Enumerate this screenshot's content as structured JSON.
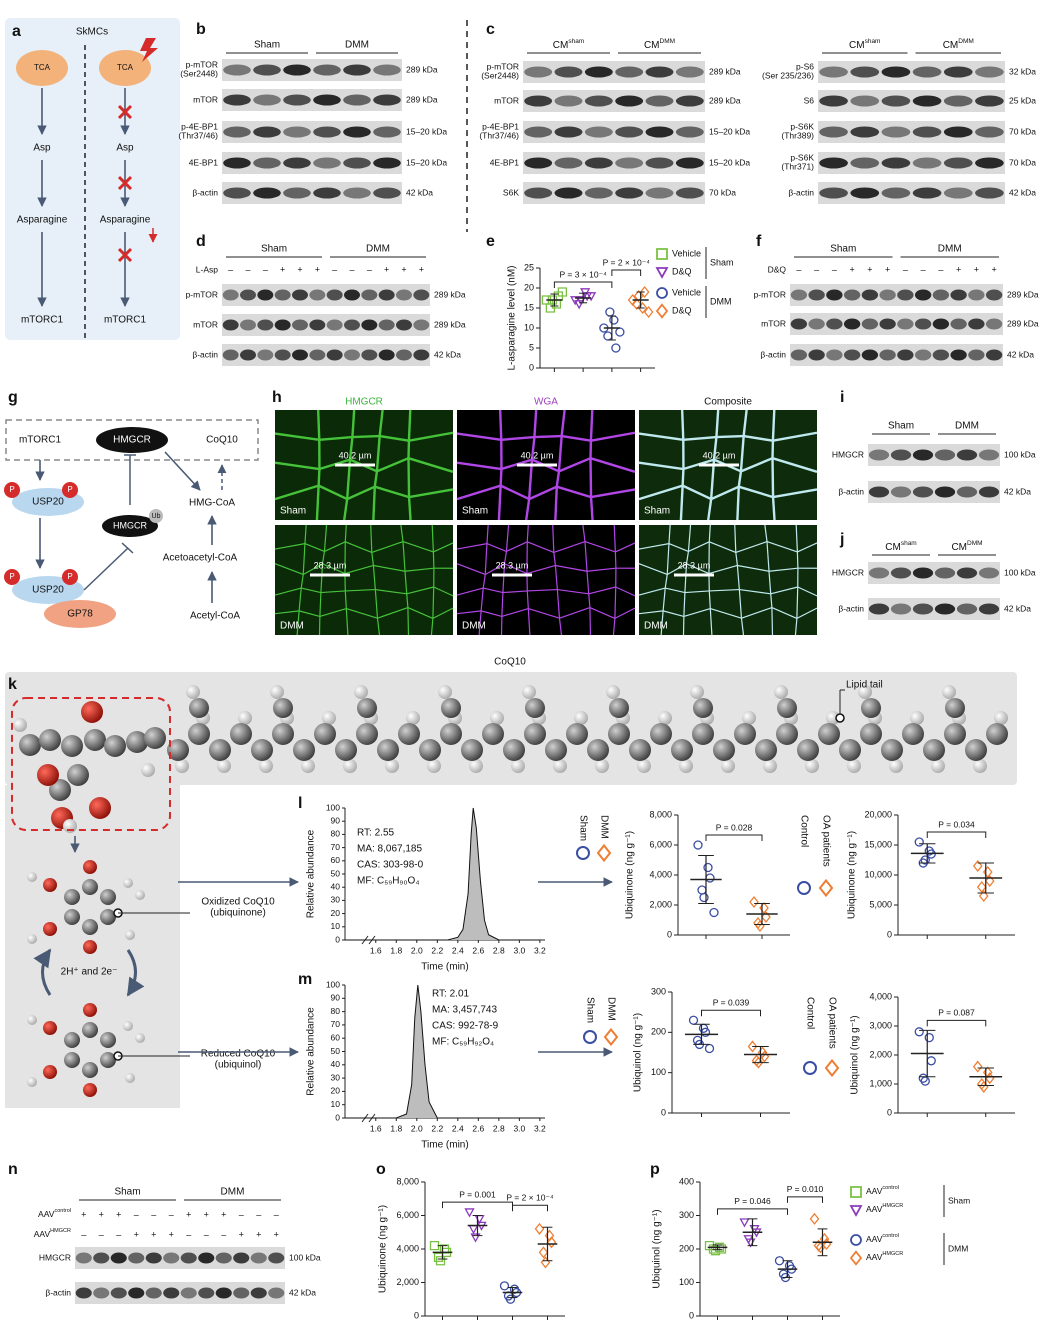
{
  "a": {
    "letter": "a",
    "title": "SkMCs",
    "left": [
      "TCA",
      "Asp",
      "Asparagine",
      "mTORC1"
    ],
    "right": [
      "TCA",
      "Asp",
      "Asparagine",
      "mTORC1"
    ]
  },
  "b": {
    "letter": "b",
    "groups": [
      "Sham",
      "DMM"
    ],
    "rows": [
      {
        "label": [
          "p-mTOR",
          "(Ser2448)"
        ],
        "kda": "289 kDa"
      },
      {
        "label": "mTOR",
        "kda": "289 kDa"
      },
      {
        "label": [
          "p-4E-BP1",
          "(Thr37/46)"
        ],
        "kda": "15–20 kDa"
      },
      {
        "label": "4E-BP1",
        "kda": "15–20 kDa"
      },
      {
        "label": "β-actin",
        "kda": "42 kDa"
      }
    ]
  },
  "c": {
    "letter": "c",
    "left": {
      "groups": [
        {
          "base": "CM",
          "sup": "sham"
        },
        {
          "base": "CM",
          "sup": "DMM"
        }
      ],
      "rows": [
        {
          "label": [
            "p-mTOR",
            "(Ser2448)"
          ],
          "kda": "289 kDa"
        },
        {
          "label": "mTOR",
          "kda": "289 kDa"
        },
        {
          "label": [
            "p-4E-BP1",
            "(Thr37/46)"
          ],
          "kda": "15–20 kDa"
        },
        {
          "label": "4E-BP1",
          "kda": "15–20 kDa"
        },
        {
          "label": "S6K",
          "kda": "70 kDa"
        }
      ]
    },
    "right": {
      "groups": [
        {
          "base": "CM",
          "sup": "sham"
        },
        {
          "base": "CM",
          "sup": "DMM"
        }
      ],
      "rows": [
        {
          "label": [
            "p-S6",
            "(Ser 235/236)"
          ],
          "kda": "32 kDa"
        },
        {
          "label": "S6",
          "kda": "25 kDa"
        },
        {
          "label": [
            "p-S6K",
            "(Thr389)"
          ],
          "kda": "70 kDa"
        },
        {
          "label": [
            "p-S6K",
            "(Thr371)"
          ],
          "kda": "70 kDa"
        },
        {
          "label": "β-actin",
          "kda": "42 kDa"
        }
      ]
    }
  },
  "d": {
    "letter": "d",
    "groups": [
      "Sham",
      "DMM"
    ],
    "conditions": [
      {
        "label": "L-Asp",
        "signs": [
          "–",
          "–",
          "–",
          "+",
          "+",
          "+",
          "–",
          "–",
          "–",
          "+",
          "+",
          "+"
        ]
      }
    ],
    "rows": [
      {
        "label": "p-mTOR",
        "kda": "289 kDa"
      },
      {
        "label": "mTOR",
        "kda": "289 kDa"
      },
      {
        "label": "β-actin",
        "kda": "42 kDa"
      }
    ]
  },
  "e": {
    "letter": "e",
    "type": "dot",
    "ylabel": "L-asparagine level (nM)",
    "ylim": [
      0,
      25
    ],
    "yticks": [
      0,
      5,
      10,
      15,
      20,
      25
    ],
    "groups": [
      {
        "color": "#7ac143",
        "marker": "square",
        "values": [
          17,
          16,
          18,
          15,
          17,
          19
        ],
        "mean": 17,
        "sd": 1.5
      },
      {
        "color": "#8a3ab9",
        "marker": "triangle",
        "values": [
          17,
          19,
          18,
          16,
          17,
          18
        ],
        "mean": 17.5,
        "sd": 1.2
      },
      {
        "color": "#3a4ea3",
        "marker": "circle",
        "values": [
          10,
          12,
          5,
          8,
          14,
          9
        ],
        "mean": 10,
        "sd": 3
      },
      {
        "color": "#ee7d31",
        "marker": "diamond",
        "values": [
          17,
          15,
          19,
          16,
          18,
          14
        ],
        "mean": 17,
        "sd": 2
      }
    ],
    "pvalues": [
      "P = 3 × 10⁻⁴",
      "P = 2 × 10⁻⁴"
    ],
    "legend": [
      {
        "condition": "Sham",
        "items": [
          "Vehicle",
          "D&Q"
        ]
      },
      {
        "condition": "DMM",
        "items": [
          "Vehicle",
          "D&Q"
        ]
      }
    ]
  },
  "f": {
    "letter": "f",
    "groups": [
      "Sham",
      "DMM"
    ],
    "conditions": [
      {
        "label": "D&Q",
        "signs": [
          "–",
          "–",
          "–",
          "+",
          "+",
          "+",
          "–",
          "–",
          "–",
          "+",
          "+",
          "+"
        ]
      }
    ],
    "rows": [
      {
        "label": "p-mTOR",
        "kda": "289 kDa"
      },
      {
        "label": "mTOR",
        "kda": "289 kDa"
      },
      {
        "label": "β-actin",
        "kda": "42 kDa"
      }
    ]
  },
  "g": {
    "letter": "g",
    "mtorc1": "mTORC1",
    "hmgcr": "HMGCR",
    "coq10": "CoQ10",
    "usp20_top": "USP20",
    "usp20_bottom": "USP20",
    "hmgcr_ub": "HMGCR",
    "ub": "Ub",
    "gp78": "GP78",
    "hmg_coa": "HMG-CoA",
    "acetoacetyl_coa": "Acetoacetyl-CoA",
    "acetyl_coa": "Acetyl-CoA",
    "phospho": [
      "P",
      "P",
      "P",
      "P"
    ]
  },
  "h": {
    "letter": "h",
    "columns": [
      "HMGCR",
      "WGA",
      "Composite"
    ],
    "rows": [
      {
        "label": "Sham",
        "scale": "40.2 µm"
      },
      {
        "label": "DMM",
        "scale": "28.3 µm"
      }
    ]
  },
  "i": {
    "letter": "i",
    "groups": [
      "Sham",
      "DMM"
    ],
    "rows": [
      {
        "label": "HMGCR",
        "kda": "100 kDa"
      },
      {
        "label": "β-actin",
        "kda": "42 kDa"
      }
    ]
  },
  "j": {
    "letter": "j",
    "groups": [
      {
        "base": "CM",
        "sup": "sham"
      },
      {
        "base": "CM",
        "sup": "DMM"
      }
    ],
    "rows": [
      {
        "label": "HMGCR",
        "kda": "100 kDa"
      },
      {
        "label": "β-actin",
        "kda": "42 kDa"
      }
    ]
  },
  "k": {
    "letter": "k",
    "title": "CoQ10",
    "lipid_tail": "Lipid tail",
    "oxidized": [
      "Oxidized CoQ10",
      "(ubiquinone)"
    ],
    "reduced": [
      "Reduced CoQ10",
      "(ubiquinol)"
    ],
    "reaction": "2H⁺ and 2e⁻"
  },
  "l": {
    "letter": "l",
    "chromatogram": {
      "type": "line",
      "ylabel": "Relative abundance",
      "xlabel": "Time (min)",
      "xlim": [
        1.3,
        3.25
      ],
      "ylim": [
        0,
        100
      ],
      "xticks": [
        1.6,
        1.8,
        {
          "value": 2,
          "label": "2.0"
        },
        2.2,
        2.4,
        2.6,
        2.8,
        {
          "value": 3,
          "label": "3.0"
        },
        3.2
      ],
      "yticks": [
        0,
        10,
        20,
        30,
        40,
        50,
        60,
        70,
        80,
        90,
        100
      ],
      "x": [
        1.3,
        2.3,
        2.4,
        2.45,
        2.5,
        2.53,
        2.55,
        2.58,
        2.62,
        2.66,
        2.7,
        2.8,
        3.2
      ],
      "values": [
        0,
        0,
        2,
        8,
        35,
        80,
        100,
        85,
        45,
        15,
        4,
        0,
        0
      ],
      "annotations": [
        "RT: 2.55",
        "MA: 8,067,185",
        "CAS: 303-98-0",
        "MF: C₅₉H₉₀O₄"
      ]
    },
    "mouse": {
      "type": "dot",
      "ylabel": "Ubiquinone (ng g⁻¹)",
      "ylim": [
        0,
        8000
      ],
      "yticks": [
        0,
        {
          "value": 2000,
          "label": "2,000"
        },
        {
          "value": 4000,
          "label": "4,000"
        },
        {
          "value": 6000,
          "label": "6,000"
        },
        {
          "value": 8000,
          "label": "8,000"
        }
      ],
      "groups": [
        {
          "color": "#3a4ea3",
          "marker": "circle",
          "values": [
            6000,
            4500,
            3800,
            3000,
            2500,
            1500
          ],
          "mean": 3700,
          "sd": 1600
        },
        {
          "color": "#ee7d31",
          "marker": "diamond",
          "values": [
            2200,
            1800,
            1200,
            800,
            600
          ],
          "mean": 1400,
          "sd": 700
        }
      ],
      "pvalues": [
        "P = 0.028"
      ],
      "legend": [
        "Sham",
        "DMM"
      ]
    },
    "human": {
      "type": "dot",
      "ylabel": "Ubiquinone (ng g⁻¹)",
      "ylim": [
        0,
        20000
      ],
      "yticks": [
        0,
        {
          "value": 5000,
          "label": "5,000"
        },
        {
          "value": 10000,
          "label": "10,000"
        },
        {
          "value": 15000,
          "label": "15,000"
        },
        {
          "value": 20000,
          "label": "20,000"
        }
      ],
      "groups": [
        {
          "color": "#3a4ea3",
          "marker": "circle",
          "values": [
            15500,
            14000,
            13500,
            12000,
            12500
          ],
          "mean": 13600,
          "sd": 1600
        },
        {
          "color": "#ee7d31",
          "marker": "diamond",
          "values": [
            11500,
            10500,
            9000,
            8000,
            6500
          ],
          "mean": 9500,
          "sd": 2500
        }
      ],
      "pvalues": [
        "P = 0.034"
      ],
      "legend": [
        "Control",
        "OA patients"
      ]
    }
  },
  "m": {
    "letter": "m",
    "chromatogram": {
      "type": "line",
      "ylabel": "Relative abundance",
      "xlabel": "Time (min)",
      "xlim": [
        1.3,
        3.25
      ],
      "ylim": [
        0,
        100
      ],
      "xticks": [
        1.6,
        1.8,
        {
          "value": 2,
          "label": "2.0"
        },
        2.2,
        2.4,
        2.6,
        2.8,
        {
          "value": 3,
          "label": "3.0"
        },
        3.2
      ],
      "yticks": [
        0,
        10,
        20,
        30,
        40,
        50,
        60,
        70,
        80,
        90,
        100
      ],
      "x": [
        1.3,
        1.8,
        1.9,
        1.95,
        1.98,
        2.01,
        2.04,
        2.08,
        2.12,
        2.2,
        3.2
      ],
      "values": [
        0,
        0,
        3,
        25,
        75,
        100,
        80,
        40,
        12,
        0,
        0
      ],
      "annotations": [
        "RT: 2.01",
        "MA: 3,457,743",
        "CAS: 992-78-9",
        "MF: C₅₉H₉₂O₄"
      ]
    },
    "mouse": {
      "type": "dot",
      "ylabel": "Ubiquinol (ng g⁻¹)",
      "ylim": [
        0,
        300
      ],
      "yticks": [
        0,
        100,
        200,
        300
      ],
      "groups": [
        {
          "color": "#3a4ea3",
          "marker": "circle",
          "values": [
            230,
            210,
            200,
            180,
            170,
            160
          ],
          "mean": 195,
          "sd": 25
        },
        {
          "color": "#ee7d31",
          "marker": "diamond",
          "values": [
            165,
            150,
            140,
            130,
            125
          ],
          "mean": 145,
          "sd": 20
        }
      ],
      "pvalues": [
        "P = 0.039"
      ],
      "legend": [
        "Sham",
        "DMM"
      ]
    },
    "human": {
      "type": "dot",
      "ylabel": "Ubiquinol (ng g⁻¹)",
      "ylim": [
        0,
        4000
      ],
      "yticks": [
        0,
        {
          "value": 1000,
          "label": "1,000"
        },
        {
          "value": 2000,
          "label": "2,000"
        },
        {
          "value": 3000,
          "label": "3,000"
        },
        {
          "value": 4000,
          "label": "4,000"
        }
      ],
      "groups": [
        {
          "color": "#3a4ea3",
          "marker": "circle",
          "values": [
            2800,
            2600,
            1800,
            1200,
            1100
          ],
          "mean": 2050,
          "sd": 800
        },
        {
          "color": "#ee7d31",
          "marker": "diamond",
          "values": [
            1600,
            1400,
            1200,
            1000,
            900
          ],
          "mean": 1250,
          "sd": 300
        }
      ],
      "pvalues": [
        "P = 0.087"
      ],
      "legend": [
        "Control",
        "OA patients"
      ]
    }
  },
  "n": {
    "letter": "n",
    "groups": [
      "Sham",
      "DMM"
    ],
    "conditions": [
      {
        "label": {
          "base": "AAV",
          "sup": "control"
        },
        "signs": [
          "+",
          "+",
          "+",
          "–",
          "–",
          "–",
          "+",
          "+",
          "+",
          "–",
          "–",
          "–"
        ]
      },
      {
        "label": {
          "base": "AAV",
          "sup": "HMGCR"
        },
        "signs": [
          "–",
          "–",
          "–",
          "+",
          "+",
          "+",
          "–",
          "–",
          "–",
          "+",
          "+",
          "+"
        ]
      }
    ],
    "rows": [
      {
        "label": "HMGCR",
        "kda": "100 kDa"
      },
      {
        "label": "β-actin",
        "kda": "42 kDa"
      }
    ]
  },
  "o": {
    "letter": "o",
    "type": "dot",
    "ylabel": "Ubiquinone (ng g⁻¹)",
    "ylim": [
      0,
      8000
    ],
    "yticks": [
      0,
      {
        "value": 2000,
        "label": "2,000"
      },
      {
        "value": 4000,
        "label": "4,000"
      },
      {
        "value": 6000,
        "label": "6,000"
      },
      {
        "value": 8000,
        "label": "8,000"
      }
    ],
    "groups": [
      {
        "color": "#7ac143",
        "marker": "square",
        "values": [
          4200,
          4000,
          3800,
          3500,
          3300
        ],
        "mean": 3800,
        "sd": 400
      },
      {
        "color": "#8a3ab9",
        "marker": "triangle",
        "values": [
          6200,
          5800,
          5400,
          5200,
          4700
        ],
        "mean": 5400,
        "sd": 600
      },
      {
        "color": "#3a4ea3",
        "marker": "circle",
        "values": [
          1800,
          1600,
          1400,
          1200,
          1000
        ],
        "mean": 1400,
        "sd": 300
      },
      {
        "color": "#ee7d31",
        "marker": "diamond",
        "values": [
          5200,
          4800,
          4400,
          3800,
          3200
        ],
        "mean": 4300,
        "sd": 1000
      }
    ],
    "pvalues": [
      "P = 0.001",
      "P = 2 × 10⁻⁴"
    ]
  },
  "p": {
    "letter": "p",
    "type": "dot",
    "ylabel": "Ubiquinol (ng g⁻¹)",
    "ylim": [
      0,
      400
    ],
    "yticks": [
      0,
      100,
      200,
      300,
      400
    ],
    "groups": [
      {
        "color": "#7ac143",
        "marker": "square",
        "values": [
          210,
          205,
          200,
          200,
          195
        ],
        "mean": 205,
        "sd": 7
      },
      {
        "color": "#8a3ab9",
        "marker": "triangle",
        "values": [
          280,
          260,
          250,
          230,
          220
        ],
        "mean": 250,
        "sd": 40
      },
      {
        "color": "#3a4ea3",
        "marker": "circle",
        "values": [
          165,
          150,
          140,
          125,
          115
        ],
        "mean": 140,
        "sd": 25
      },
      {
        "color": "#ee7d31",
        "marker": "diamond",
        "values": [
          290,
          230,
          215,
          210,
          205
        ],
        "mean": 220,
        "sd": 40
      }
    ],
    "pvalues": [
      "P = 0.046",
      "P = 0.010"
    ],
    "legend": [
      {
        "condition": "Sham",
        "items": [
          {
            "base": "AAV",
            "sup": "control"
          },
          {
            "base": "AAV",
            "sup": "HMGCR"
          }
        ]
      },
      {
        "condition": "DMM",
        "items": [
          {
            "base": "AAV",
            "sup": "control"
          },
          {
            "base": "AAV",
            "sup": "HMGCR"
          }
        ]
      }
    ]
  }
}
